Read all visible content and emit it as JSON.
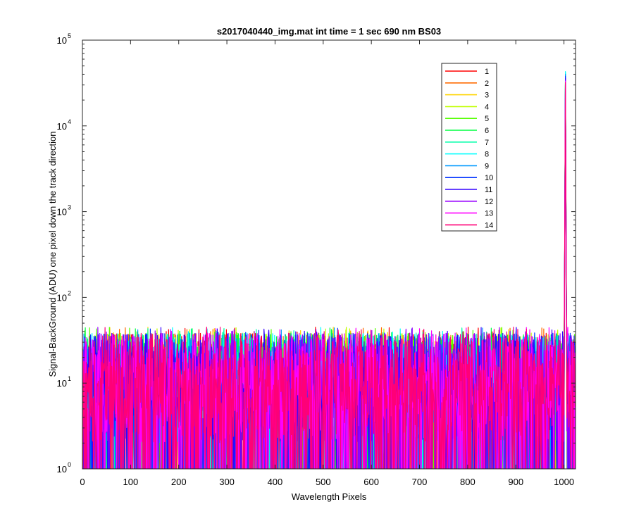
{
  "chart_data": {
    "type": "line",
    "title": "s2017040440_img.mat int time = 1 sec  690 nm BS03",
    "xlabel": "Wavelength Pixels",
    "ylabel": "Signal-BackGround (ADU) one pixel down the track direction",
    "xlim": [
      0,
      1024
    ],
    "ylim": [
      1,
      100000
    ],
    "yscale": "log",
    "grid": false,
    "legend_position": "top-right",
    "x_ticks": [
      0,
      100,
      200,
      300,
      400,
      500,
      600,
      700,
      800,
      900,
      1000
    ],
    "y_ticks": [
      {
        "value": 1,
        "base": "10",
        "exp": "0"
      },
      {
        "value": 10,
        "base": "10",
        "exp": "1"
      },
      {
        "value": 100,
        "base": "10",
        "exp": "2"
      },
      {
        "value": 1000,
        "base": "10",
        "exp": "3"
      },
      {
        "value": 10000,
        "base": "10",
        "exp": "4"
      },
      {
        "value": 100000,
        "base": "10",
        "exp": "5"
      }
    ],
    "noise_floor_range": [
      1,
      45
    ],
    "peak_x": 1003,
    "series": [
      {
        "name": "1",
        "color": "#ff0000",
        "peak": 36000
      },
      {
        "name": "2",
        "color": "#ff6a00",
        "peak": 37000
      },
      {
        "name": "3",
        "color": "#ffd400",
        "peak": 38000
      },
      {
        "name": "4",
        "color": "#c0ff00",
        "peak": 39000
      },
      {
        "name": "5",
        "color": "#55ff00",
        "peak": 40000
      },
      {
        "name": "6",
        "color": "#00ff40",
        "peak": 41000
      },
      {
        "name": "7",
        "color": "#00ffaa",
        "peak": 42000
      },
      {
        "name": "8",
        "color": "#00ffff",
        "peak": 43000
      },
      {
        "name": "9",
        "color": "#0099ff",
        "peak": 40000
      },
      {
        "name": "10",
        "color": "#0033ff",
        "peak": 38000
      },
      {
        "name": "11",
        "color": "#3300ff",
        "peak": 36000
      },
      {
        "name": "12",
        "color": "#9900ff",
        "peak": 34000
      },
      {
        "name": "13",
        "color": "#ff00ff",
        "peak": 33000
      },
      {
        "name": "14",
        "color": "#ff0077",
        "peak": 32000
      }
    ]
  }
}
